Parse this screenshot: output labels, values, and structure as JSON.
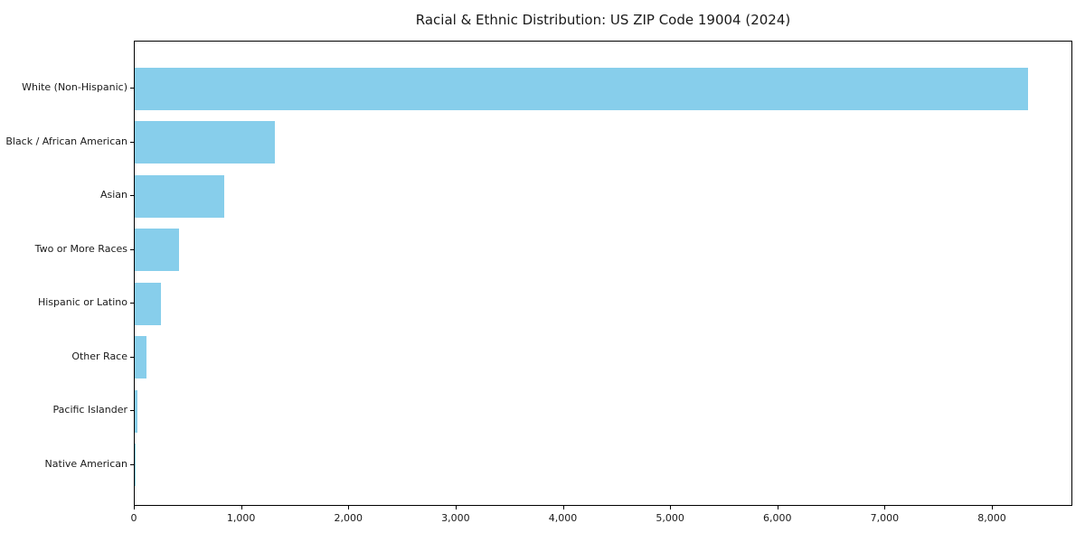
{
  "chart_data": {
    "type": "bar",
    "orientation": "horizontal",
    "title": "Racial & Ethnic Distribution: US ZIP Code 19004 (2024)",
    "categories": [
      "White (Non-Hispanic)",
      "Black / African American",
      "Asian",
      "Two or More Races",
      "Hispanic or Latino",
      "Other Race",
      "Pacific Islander",
      "Native American"
    ],
    "values": [
      8330,
      1310,
      835,
      410,
      245,
      110,
      25,
      5
    ],
    "xlabel": "",
    "ylabel": "",
    "xlim": [
      0,
      8750
    ],
    "xticks": {
      "values": [
        0,
        1000,
        2000,
        3000,
        4000,
        5000,
        6000,
        7000,
        8000
      ],
      "labels": [
        "0",
        "1,000",
        "2,000",
        "3,000",
        "4,000",
        "5,000",
        "6,000",
        "7,000",
        "8,000"
      ]
    },
    "bar_color": "#87CEEB",
    "background_color": "#ffffff",
    "spine_color": "#000000",
    "grid": false,
    "legend": null
  }
}
